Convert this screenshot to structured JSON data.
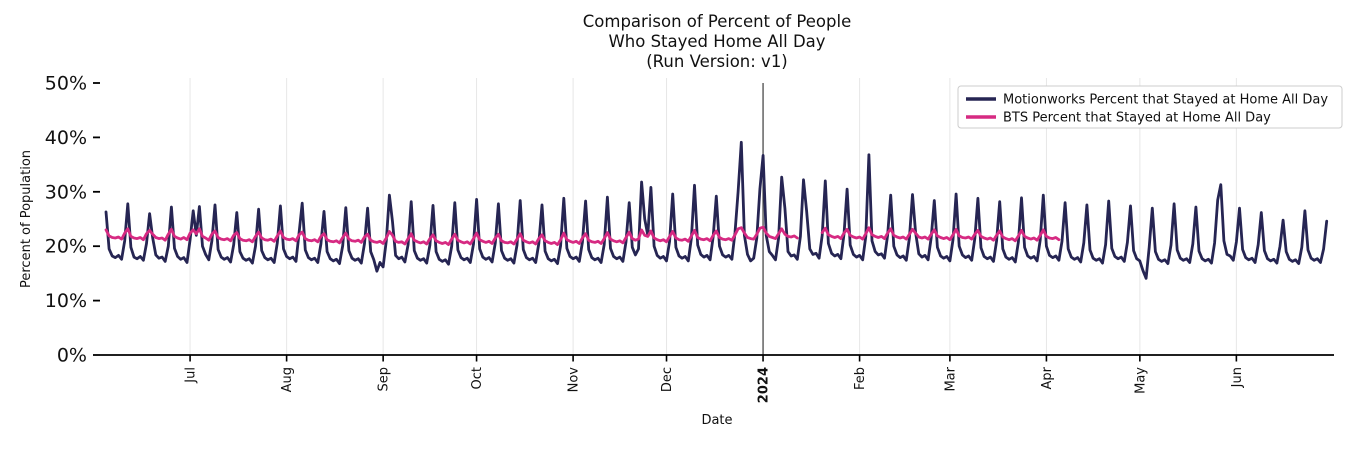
{
  "title": {
    "line1": "Comparison of Percent of People",
    "line2": "Who Stayed Home All Day",
    "line3": "(Run Version: v1)"
  },
  "axes": {
    "xlabel": "Date",
    "ylabel": "Percent of Population"
  },
  "legend": {
    "entries": [
      {
        "label": "Motionworks Percent that Stayed at Home All Day",
        "color": "#262553"
      },
      {
        "label": "BTS Percent that Stayed at Home All Day",
        "color": "#d62a82"
      }
    ]
  },
  "chart_data": {
    "type": "line",
    "x_unit": "day",
    "title": "Comparison of Percent of People Who Stayed Home All Day (Run Version: v1)",
    "xlabel": "Date",
    "ylabel": "Percent of Population",
    "ylim": [
      0,
      50
    ],
    "grid": "vertical-only",
    "legend_position": "upper right",
    "y_ticks": [
      {
        "label": "0%",
        "value": 0
      },
      {
        "label": "10%",
        "value": 10
      },
      {
        "label": "20%",
        "value": 20
      },
      {
        "label": "30%",
        "value": 30
      },
      {
        "label": "40%",
        "value": 40
      },
      {
        "label": "50%",
        "value": 50
      }
    ],
    "x_ticks": [
      {
        "label": "Jul",
        "day": 27,
        "emphasis": false
      },
      {
        "label": "Aug",
        "day": 58,
        "emphasis": false
      },
      {
        "label": "Sep",
        "day": 89,
        "emphasis": false
      },
      {
        "label": "Oct",
        "day": 119,
        "emphasis": false
      },
      {
        "label": "Nov",
        "day": 150,
        "emphasis": false
      },
      {
        "label": "Dec",
        "day": 180,
        "emphasis": false
      },
      {
        "label": "2024",
        "day": 211,
        "emphasis": true
      },
      {
        "label": "Feb",
        "day": 242,
        "emphasis": false
      },
      {
        "label": "Mar",
        "day": 271,
        "emphasis": false
      },
      {
        "label": "Apr",
        "day": 302,
        "emphasis": false
      },
      {
        "label": "May",
        "day": 332,
        "emphasis": false
      },
      {
        "label": "Jun",
        "day": 363,
        "emphasis": false
      }
    ],
    "reference_line": {
      "label": "2024",
      "day": 211,
      "color": "#3b3b3b"
    },
    "series": [
      {
        "name": "Motionworks Percent that Stayed at Home All Day",
        "color": "#262553",
        "line_width": 2.8,
        "values": [
          26.3,
          19.5,
          18.2,
          17.9,
          18.3,
          17.6,
          21.0,
          27.8,
          19.8,
          18.0,
          17.7,
          18.1,
          17.4,
          20.5,
          26.0,
          21.5,
          18.4,
          17.8,
          18.0,
          17.2,
          20.0,
          27.2,
          19.6,
          18.1,
          17.6,
          17.9,
          17.0,
          21.2,
          26.5,
          22.0,
          27.3,
          20.0,
          18.5,
          17.5,
          21.0,
          27.6,
          19.4,
          18.0,
          17.6,
          17.9,
          17.1,
          20.3,
          26.2,
          19.0,
          17.8,
          17.4,
          17.7,
          16.9,
          20.0,
          26.8,
          19.2,
          17.9,
          17.5,
          17.8,
          17.0,
          20.6,
          27.4,
          19.5,
          18.1,
          17.7,
          18.0,
          17.2,
          22.5,
          27.9,
          19.3,
          17.9,
          17.5,
          17.8,
          17.0,
          20.4,
          26.4,
          19.0,
          17.7,
          17.3,
          17.6,
          16.8,
          20.1,
          27.1,
          19.2,
          17.8,
          17.4,
          17.7,
          16.9,
          20.5,
          27.0,
          19.0,
          17.5,
          15.4,
          17.0,
          16.2,
          21.0,
          29.4,
          24.5,
          18.3,
          17.7,
          18.0,
          17.1,
          20.3,
          28.2,
          19.2,
          17.8,
          17.4,
          17.7,
          16.9,
          20.2,
          27.5,
          19.0,
          17.6,
          17.2,
          17.5,
          16.7,
          20.0,
          28.0,
          19.3,
          17.9,
          17.5,
          17.8,
          17.0,
          20.4,
          28.6,
          19.5,
          18.0,
          17.6,
          17.9,
          17.1,
          20.6,
          27.8,
          19.2,
          17.8,
          17.4,
          17.7,
          16.9,
          20.2,
          28.4,
          19.4,
          17.9,
          17.5,
          17.8,
          17.0,
          20.5,
          27.6,
          19.1,
          17.7,
          17.3,
          17.6,
          16.8,
          20.1,
          28.8,
          19.6,
          18.1,
          17.7,
          18.0,
          17.2,
          20.7,
          28.3,
          19.4,
          17.9,
          17.5,
          17.8,
          17.0,
          20.3,
          29.0,
          19.6,
          18.1,
          17.7,
          18.0,
          17.2,
          20.8,
          28.0,
          19.8,
          18.4,
          19.5,
          31.8,
          25.0,
          22.0,
          30.8,
          20.0,
          18.3,
          17.8,
          18.1,
          17.3,
          20.9,
          29.6,
          19.8,
          18.2,
          17.8,
          18.1,
          17.3,
          21.5,
          31.2,
          20.2,
          18.5,
          18.0,
          18.3,
          17.5,
          21.8,
          29.2,
          20.0,
          18.4,
          18.0,
          18.3,
          17.6,
          22.5,
          30.0,
          39.1,
          22.0,
          18.5,
          17.3,
          17.8,
          21.5,
          30.5,
          36.7,
          22.0,
          19.0,
          18.3,
          17.5,
          21.5,
          32.7,
          27.0,
          19.0,
          18.2,
          18.4,
          17.6,
          21.8,
          32.2,
          26.5,
          19.5,
          18.5,
          18.7,
          17.8,
          22.0,
          32.0,
          20.5,
          18.7,
          18.2,
          18.5,
          17.7,
          22.2,
          30.5,
          20.2,
          18.5,
          18.0,
          18.3,
          17.5,
          21.8,
          36.8,
          21.0,
          19.0,
          18.4,
          18.6,
          17.8,
          22.0,
          29.4,
          20.0,
          18.4,
          17.9,
          18.2,
          17.4,
          21.5,
          29.5,
          22.5,
          18.6,
          18.0,
          18.3,
          17.5,
          21.6,
          28.4,
          19.8,
          18.2,
          17.8,
          18.1,
          17.3,
          21.2,
          29.6,
          20.0,
          18.4,
          17.9,
          18.2,
          17.4,
          21.4,
          28.8,
          19.7,
          18.1,
          17.7,
          18.0,
          17.2,
          21.0,
          28.2,
          19.5,
          18.0,
          17.6,
          17.9,
          17.1,
          20.8,
          28.9,
          19.8,
          18.2,
          17.8,
          18.1,
          17.3,
          21.1,
          29.4,
          20.0,
          18.3,
          17.9,
          18.2,
          17.4,
          20.9,
          28.0,
          19.5,
          18.0,
          17.6,
          17.9,
          17.1,
          20.6,
          27.6,
          19.3,
          17.8,
          17.4,
          17.7,
          16.9,
          20.3,
          28.3,
          19.6,
          18.1,
          17.7,
          18.0,
          17.2,
          20.7,
          27.4,
          19.2,
          17.7,
          17.3,
          15.5,
          14.1,
          19.8,
          27.0,
          19.0,
          17.6,
          17.2,
          17.5,
          16.8,
          20.2,
          27.8,
          19.3,
          17.8,
          17.4,
          17.7,
          17.0,
          20.4,
          27.2,
          19.1,
          17.7,
          17.3,
          17.6,
          16.9,
          20.6,
          28.5,
          31.3,
          21.0,
          18.5,
          18.2,
          17.4,
          20.8,
          27.0,
          19.4,
          17.9,
          17.5,
          17.8,
          17.0,
          20.3,
          26.2,
          19.2,
          17.7,
          17.3,
          17.6,
          16.9,
          20.0,
          24.8,
          19.0,
          17.6,
          17.2,
          17.5,
          16.8,
          19.8,
          26.5,
          19.3,
          17.8,
          17.4,
          17.7,
          17.0,
          19.5,
          24.6
        ]
      },
      {
        "name": "BTS Percent that Stayed at Home All Day",
        "color": "#d62a82",
        "line_width": 2.8,
        "values": [
          23.0,
          21.9,
          21.6,
          21.5,
          21.7,
          21.3,
          22.4,
          23.2,
          21.8,
          21.5,
          21.4,
          21.6,
          21.2,
          22.3,
          22.9,
          22.2,
          21.6,
          21.4,
          21.5,
          21.1,
          22.2,
          23.1,
          21.8,
          21.5,
          21.3,
          21.6,
          21.2,
          22.4,
          23.0,
          22.3,
          23.2,
          21.8,
          21.5,
          21.1,
          22.2,
          22.8,
          21.6,
          21.3,
          21.2,
          21.4,
          21.0,
          22.0,
          22.5,
          21.4,
          21.1,
          21.0,
          21.2,
          20.8,
          21.8,
          22.6,
          21.5,
          21.2,
          21.1,
          21.3,
          20.9,
          21.9,
          22.8,
          21.6,
          21.3,
          21.2,
          21.4,
          21.0,
          22.1,
          22.6,
          21.4,
          21.1,
          21.0,
          21.2,
          20.8,
          21.8,
          22.3,
          21.2,
          20.9,
          20.8,
          21.0,
          20.6,
          21.6,
          22.4,
          21.3,
          21.0,
          20.9,
          21.1,
          20.7,
          21.7,
          22.2,
          21.1,
          20.8,
          20.7,
          20.9,
          20.5,
          21.5,
          22.7,
          22.0,
          20.9,
          20.7,
          20.8,
          20.4,
          21.4,
          22.3,
          21.1,
          20.8,
          20.6,
          20.8,
          20.4,
          21.4,
          22.1,
          21.0,
          20.7,
          20.5,
          20.7,
          20.3,
          21.3,
          22.2,
          21.1,
          20.8,
          20.6,
          20.8,
          20.4,
          21.4,
          22.4,
          21.2,
          20.9,
          20.7,
          20.9,
          20.5,
          21.5,
          22.2,
          21.0,
          20.7,
          20.6,
          20.8,
          20.4,
          21.3,
          22.3,
          21.1,
          20.8,
          20.6,
          20.8,
          20.4,
          21.4,
          22.1,
          21.0,
          20.7,
          20.5,
          20.7,
          20.3,
          21.2,
          22.4,
          21.2,
          20.9,
          20.7,
          20.9,
          20.5,
          21.5,
          22.3,
          21.1,
          20.8,
          20.7,
          20.9,
          20.5,
          21.4,
          22.5,
          21.3,
          21.0,
          20.8,
          21.0,
          20.6,
          21.6,
          22.6,
          21.4,
          21.1,
          21.3,
          23.0,
          22.0,
          21.8,
          22.8,
          21.5,
          21.2,
          21.0,
          21.2,
          20.8,
          21.8,
          22.7,
          21.5,
          21.2,
          21.1,
          21.3,
          20.9,
          21.9,
          22.9,
          21.6,
          21.3,
          21.2,
          21.4,
          21.0,
          22.0,
          22.8,
          21.6,
          21.3,
          21.2,
          21.4,
          21.1,
          22.1,
          23.2,
          23.4,
          22.4,
          21.6,
          21.4,
          21.3,
          22.2,
          23.3,
          23.5,
          22.4,
          21.8,
          21.6,
          21.4,
          22.3,
          23.2,
          22.2,
          21.8,
          21.7,
          21.9,
          21.5,
          null,
          null,
          null,
          null,
          null,
          null,
          null,
          22.5,
          23.3,
          22.1,
          21.8,
          21.6,
          21.8,
          21.4,
          22.4,
          23.1,
          22.0,
          21.7,
          21.5,
          21.7,
          21.3,
          22.3,
          23.4,
          22.1,
          21.8,
          21.6,
          21.8,
          21.4,
          22.4,
          23.2,
          22.0,
          21.7,
          21.5,
          21.7,
          21.3,
          22.2,
          23.1,
          22.4,
          21.7,
          21.5,
          21.7,
          21.3,
          22.2,
          23.0,
          21.9,
          21.6,
          21.4,
          21.6,
          21.2,
          22.1,
          23.1,
          21.9,
          21.6,
          21.5,
          21.7,
          21.3,
          22.2,
          22.9,
          21.8,
          21.5,
          21.3,
          21.5,
          21.1,
          22.0,
          22.8,
          21.7,
          21.4,
          21.2,
          21.4,
          21.0,
          21.9,
          22.9,
          21.8,
          21.5,
          21.3,
          21.5,
          21.1,
          22.0,
          23.0,
          21.8,
          21.5,
          21.4,
          21.6,
          21.2
        ]
      }
    ]
  },
  "colors": {
    "grid": "#e7e7e7",
    "axis": "#000000",
    "reference_line": "#3b3b3b",
    "legend_border": "#cccccc"
  }
}
